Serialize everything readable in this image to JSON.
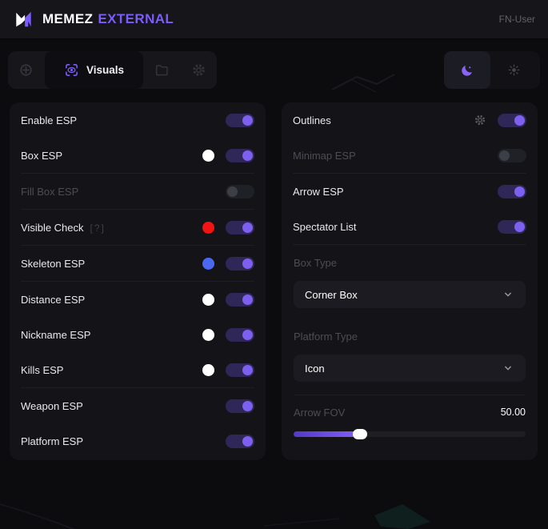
{
  "header": {
    "brand_primary": "MEMEZ",
    "brand_secondary": "EXTERNAL",
    "user": "FN-User"
  },
  "tabs": {
    "active": {
      "label": "Visuals",
      "icon": "visuals-eye-icon"
    },
    "other_icons": [
      "crosshair-icon",
      "folder-icon",
      "gear-icon"
    ]
  },
  "theme": {
    "modes": [
      "moon",
      "sun"
    ],
    "active": "moon"
  },
  "colors": {
    "accent": "#7c5cfa",
    "red": "#f21313",
    "blue": "#4b68f2",
    "white": "#ffffff"
  },
  "left_panel": {
    "rows": [
      {
        "label": "Enable ESP",
        "on": true,
        "disabled": false,
        "swatch": null
      },
      {
        "label": "Box ESP",
        "on": true,
        "disabled": false,
        "swatch": "#ffffff"
      },
      {
        "label": "Fill Box ESP",
        "on": false,
        "disabled": true,
        "swatch": null
      },
      {
        "label": "Visible Check",
        "on": true,
        "disabled": false,
        "swatch": "#f21313",
        "help": "[?]"
      },
      {
        "label": "Skeleton ESP",
        "on": true,
        "disabled": false,
        "swatch": "#4b68f2"
      },
      {
        "label": "Distance ESP",
        "on": true,
        "disabled": false,
        "swatch": "#ffffff"
      },
      {
        "label": "Nickname ESP",
        "on": true,
        "disabled": false,
        "swatch": "#ffffff"
      },
      {
        "label": "Kills ESP",
        "on": true,
        "disabled": false,
        "swatch": "#ffffff"
      },
      {
        "label": "Weapon ESP",
        "on": true,
        "disabled": false,
        "swatch": null
      },
      {
        "label": "Platform ESP",
        "on": true,
        "disabled": false,
        "swatch": null
      }
    ]
  },
  "right_panel": {
    "toggles": [
      {
        "label": "Outlines",
        "on": true,
        "disabled": false,
        "gear": true
      },
      {
        "label": "Minimap ESP",
        "on": false,
        "disabled": true
      },
      {
        "label": "Arrow ESP",
        "on": true,
        "disabled": false
      },
      {
        "label": "Spectator List",
        "on": true,
        "disabled": false
      }
    ],
    "selects": [
      {
        "label": "Box Type",
        "value": "Corner Box"
      },
      {
        "label": "Platform Type",
        "value": "Icon"
      }
    ],
    "slider": {
      "label": "Arrow FOV",
      "value": "50.00",
      "percent": 28.5
    }
  }
}
